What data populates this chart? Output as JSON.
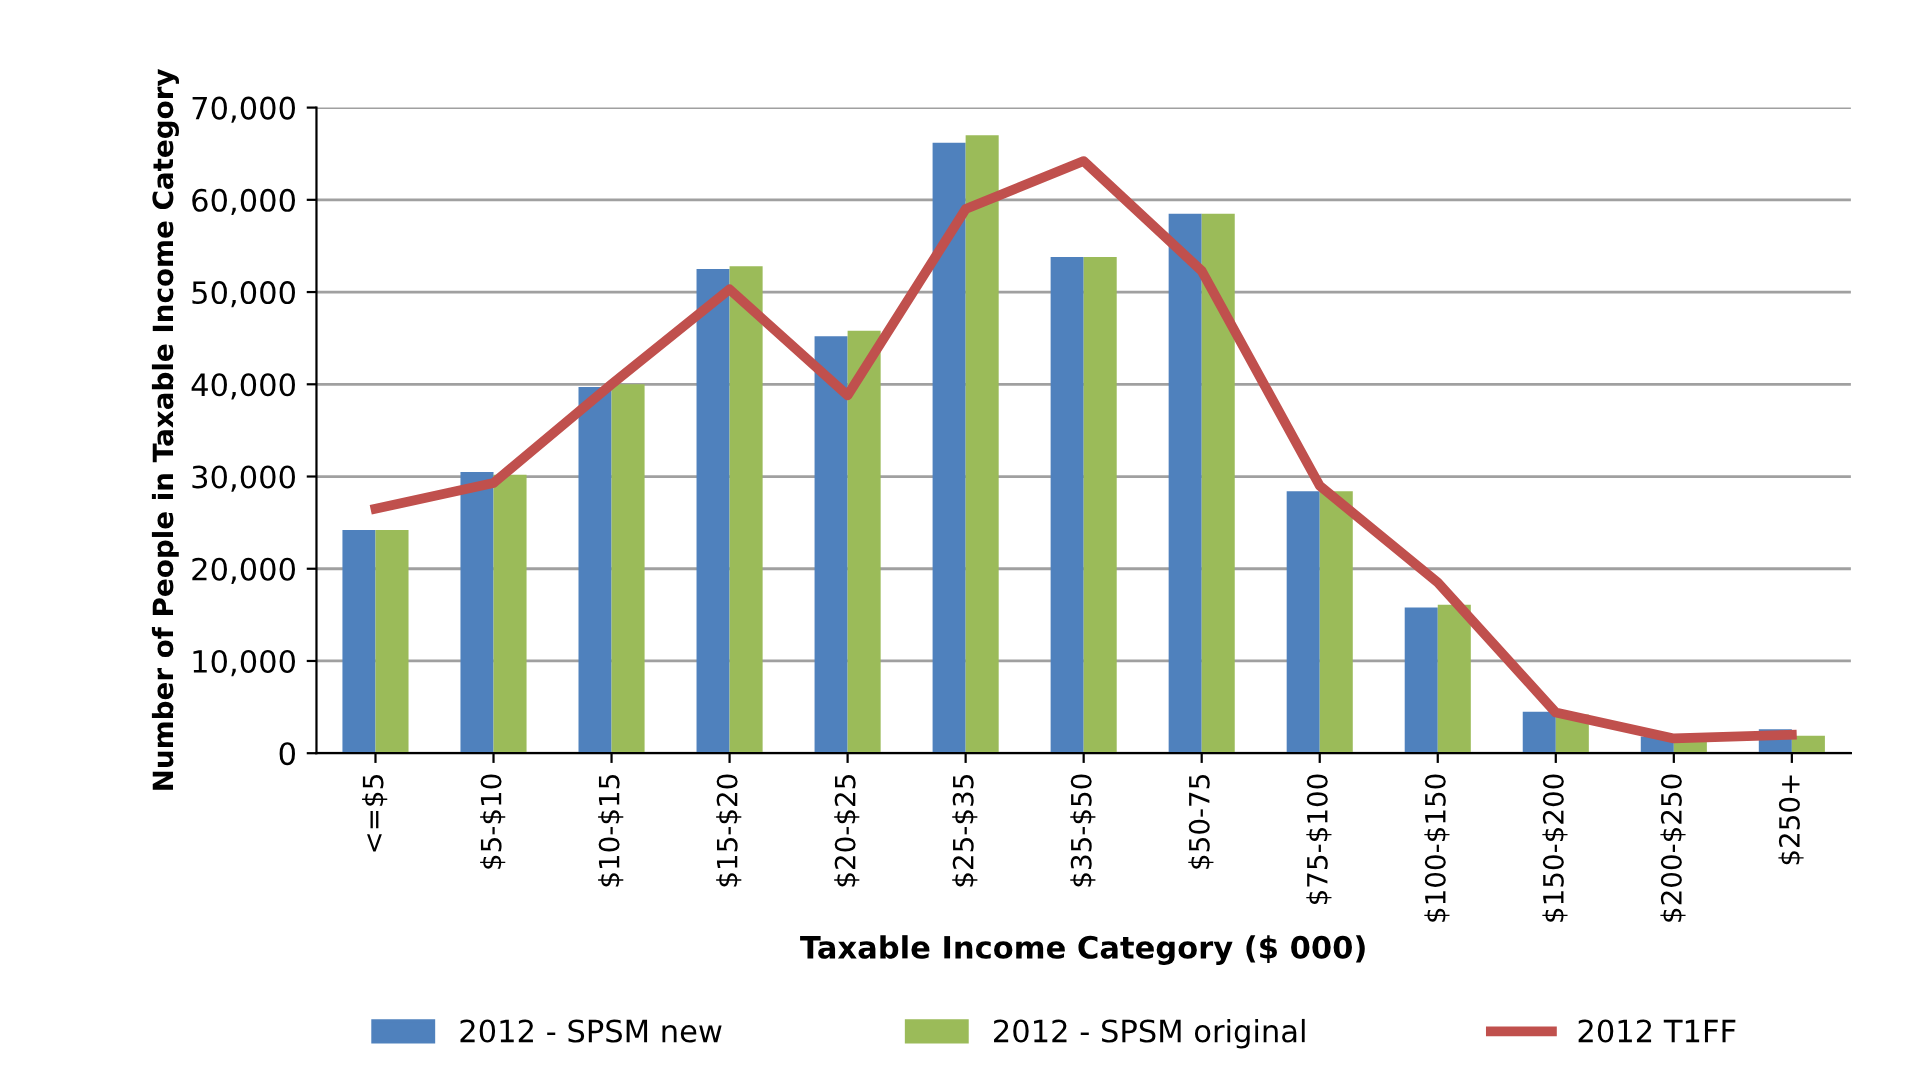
{
  "chart_data": {
    "type": "bar",
    "xlabel": "Taxable Income Category ($ 000)",
    "ylabel": "Number of People in Taxable Income Category",
    "categories": [
      "<=$5",
      "$5-$10",
      "$10-$15",
      "$15-$20",
      "$20-$25",
      "$25-$35",
      "$35-$50",
      "$50-75",
      "$75-$100",
      "$100-$150",
      "$150-$200",
      "$200-$250",
      "$250+"
    ],
    "series": [
      {
        "name": "2012 - SPSM new",
        "color": "#4f81bd",
        "values": [
          24200,
          30500,
          39700,
          52500,
          45200,
          66200,
          53800,
          58500,
          28400,
          15800,
          4500,
          1800,
          2600
        ]
      },
      {
        "name": "2012 - SPSM original",
        "color": "#9bbb59",
        "values": [
          24200,
          30200,
          40000,
          52800,
          45800,
          67000,
          53800,
          58500,
          28400,
          16100,
          4200,
          1500,
          1900
        ]
      },
      {
        "name": "2012 T1FF",
        "color": "#c0504d",
        "type": "line",
        "values": [
          26500,
          29300,
          40000,
          50300,
          38800,
          59000,
          64200,
          52300,
          29000,
          18500,
          4400,
          1600,
          2000
        ]
      }
    ],
    "ylim": [
      0,
      70000
    ],
    "yticks": [
      {
        "value": 0,
        "label": "0"
      },
      {
        "value": 10000,
        "label": "10,000"
      },
      {
        "value": 20000,
        "label": "20,000"
      },
      {
        "value": 30000,
        "label": "30,000"
      },
      {
        "value": 40000,
        "label": "40,000"
      },
      {
        "value": 50000,
        "label": "50,000"
      },
      {
        "value": 60000,
        "label": "60,000"
      },
      {
        "value": 70000,
        "label": "70,000"
      }
    ],
    "grid": "y",
    "legend": "bottom"
  }
}
